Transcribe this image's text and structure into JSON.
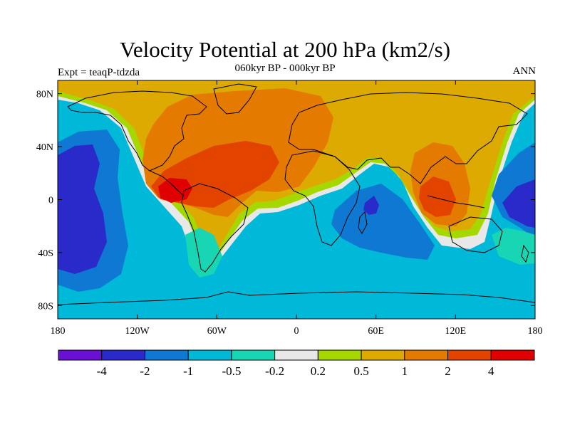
{
  "header": {
    "title": "Velocity Potential at 200 hPa (km2/s)",
    "subtitle": "060kyr BP - 000kyr BP",
    "left_label": "Expt = teaqP-tdzda",
    "right_label": "ANN"
  },
  "axes": {
    "lat_ticks": [
      {
        "value": 80,
        "label": "80N"
      },
      {
        "value": 40,
        "label": "40N"
      },
      {
        "value": 0,
        "label": "0"
      },
      {
        "value": -40,
        "label": "40S"
      },
      {
        "value": -80,
        "label": "80S"
      }
    ],
    "lon_ticks": [
      {
        "value": -180,
        "label": "180"
      },
      {
        "value": -120,
        "label": "120W"
      },
      {
        "value": -60,
        "label": "60W"
      },
      {
        "value": 0,
        "label": "0"
      },
      {
        "value": 60,
        "label": "60E"
      },
      {
        "value": 120,
        "label": "120E"
      },
      {
        "value": 180,
        "label": "180"
      }
    ],
    "lon_range": [
      -180,
      180
    ],
    "lat_range": [
      -90,
      90
    ]
  },
  "colorbar": {
    "colors": [
      "#6a0fd4",
      "#2a2acb",
      "#0e78d2",
      "#00b8d8",
      "#18d6b4",
      "#e8e8e8",
      "#a6d800",
      "#dcaa00",
      "#e47a00",
      "#e24400",
      "#e00000"
    ],
    "labels": [
      "-4",
      "-2",
      "-1",
      "-0.5",
      "-0.2",
      "0.2",
      "0.5",
      "1",
      "2",
      "4"
    ]
  },
  "map_colors": {
    "background": "#00b8d8",
    "coastline": "#000000"
  }
}
